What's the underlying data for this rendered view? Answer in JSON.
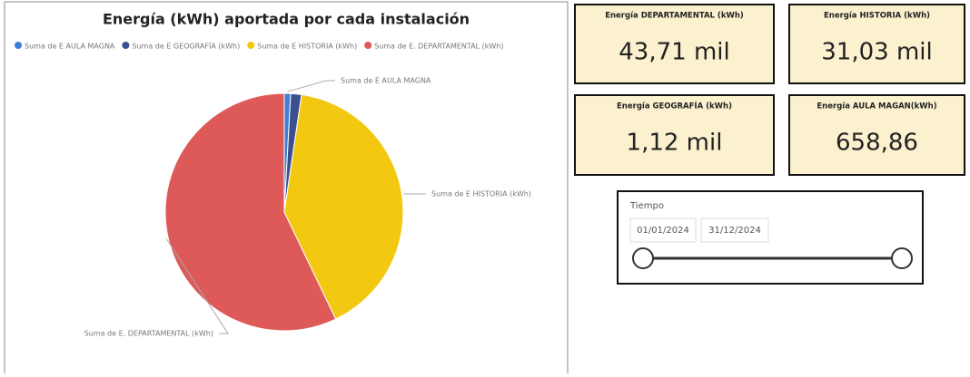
{
  "chart_data": {
    "type": "pie",
    "title": "Energía (kWh) aportada por cada instalación",
    "categories": [
      "Suma de E AULA MAGNA",
      "Suma de E GEOGRAFÍA (kWh)",
      "Suma de E HISTORIA (kWh)",
      "Suma de E. DEPARTAMENTAL (kWh)"
    ],
    "values": [
      658.86,
      1120,
      31030,
      43710
    ],
    "colors": [
      "#3f7fd6",
      "#3a4f8f",
      "#f2c811",
      "#dd5a58"
    ],
    "slice_labels": [
      "Suma de E AULA MAGNA",
      null,
      "Suma de E HISTORIA (kWh)",
      "Suma de E. DEPARTAMENTAL (kWh)"
    ],
    "legend": "top"
  },
  "cards": [
    {
      "title": "Energía DEPARTAMENTAL (kWh)",
      "value": "43,71 mil"
    },
    {
      "title": "Energía HISTORIA (kWh)",
      "value": "31,03 mil"
    },
    {
      "title": "Energía GEOGRAFÍA (kWh)",
      "value": "1,12 mil"
    },
    {
      "title": "Energía AULA MAGAN(kWh)",
      "value": "658,86"
    }
  ],
  "slicer": {
    "title": "Tiempo",
    "start": "01/01/2024",
    "end": "31/12/2024"
  }
}
